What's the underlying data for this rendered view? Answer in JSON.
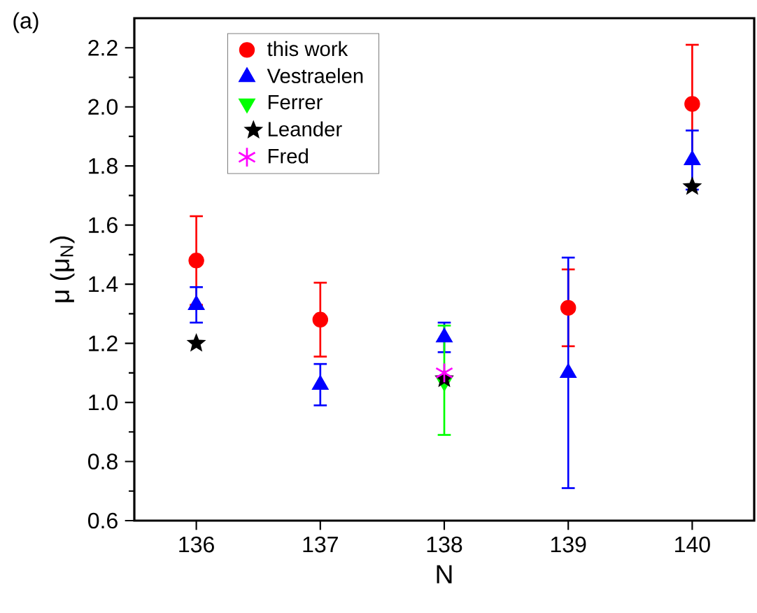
{
  "chart_data": {
    "type": "scatter",
    "xlabel": "N",
    "ylabel": "μ (μ$_{N}$)",
    "annotations": [
      "(a)"
    ],
    "xlim": [
      135.5,
      140.5
    ],
    "xticks": [
      136,
      137,
      138,
      139,
      140
    ],
    "ylim": [
      0.6,
      2.3
    ],
    "yticks": [
      0.6,
      0.8,
      {
        "value": 1.0,
        "label": "1.0"
      },
      1.2,
      1.4,
      1.6,
      1.8,
      {
        "value": 2.0,
        "label": "2.0"
      },
      2.2
    ],
    "legend": "top left",
    "series": [
      {
        "name": "this work",
        "color": "#ff0000",
        "marker": "circle",
        "x": [
          136,
          137,
          139,
          140
        ],
        "values": [
          1.48,
          1.28,
          1.32,
          2.01
        ],
        "errors": [
          0.15,
          0.125,
          0.13,
          0.2
        ]
      },
      {
        "name": "Vestraelen",
        "color": "#0000ff",
        "marker": "triangle",
        "x": [
          136,
          137,
          138,
          139,
          140
        ],
        "values": [
          1.33,
          1.06,
          1.22,
          1.1,
          1.82
        ],
        "errors": [
          0.06,
          0.07,
          0.05,
          [
            0.71,
            1.49
          ],
          0.1
        ]
      },
      {
        "name": "Ferrer",
        "color": "#00ff00",
        "marker": "triangle-down",
        "x": [
          138
        ],
        "values": [
          1.07
        ],
        "errors": [
          [
            0.89,
            1.26
          ]
        ]
      },
      {
        "name": "Leander",
        "color": "#000000",
        "marker": "star",
        "x": [
          136,
          138,
          140
        ],
        "values": [
          1.2,
          1.08,
          1.73
        ]
      },
      {
        "name": "Fred",
        "color": "#ff00ff",
        "marker": "cross",
        "x": [
          138
        ],
        "values": [
          1.1
        ]
      }
    ]
  }
}
